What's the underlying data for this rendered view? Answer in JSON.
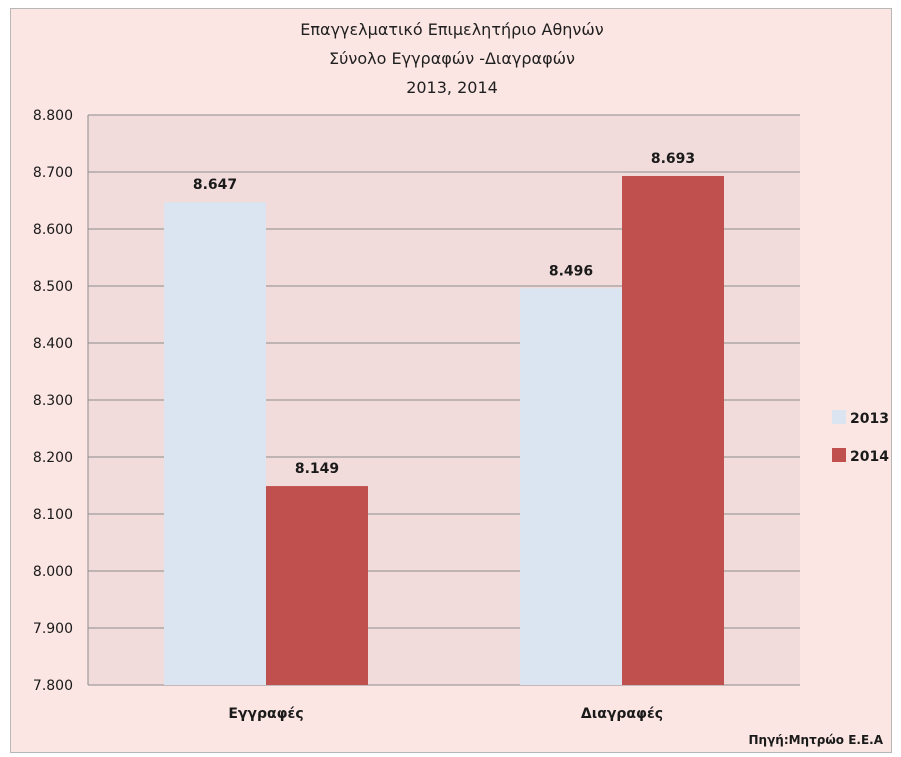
{
  "chart_data": {
    "type": "bar",
    "title_lines": [
      "Επαγγελματικό Επιμελητήριο Αθηνών",
      "Σύνολο Εγγραφών -Διαγραφών",
      "2013, 2014"
    ],
    "categories": [
      "Εγγραφές",
      "Διαγραφές"
    ],
    "series": [
      {
        "name": "2013",
        "values": [
          8647,
          8496
        ],
        "labels": [
          "8.647",
          "8.496"
        ],
        "color": "#dbe5f1"
      },
      {
        "name": "2014",
        "values": [
          8149,
          8693
        ],
        "labels": [
          "8.149",
          "8.693"
        ],
        "color": "#c0504d"
      }
    ],
    "ylim": [
      7800,
      8800
    ],
    "y_ticks": [
      {
        "value": 7800,
        "label": "7.800"
      },
      {
        "value": 7900,
        "label": "7.900"
      },
      {
        "value": 8000,
        "label": "8.000"
      },
      {
        "value": 8100,
        "label": "8.100"
      },
      {
        "value": 8200,
        "label": "8.200"
      },
      {
        "value": 8300,
        "label": "8.300"
      },
      {
        "value": 8400,
        "label": "8.400"
      },
      {
        "value": 8500,
        "label": "8.500"
      },
      {
        "value": 8600,
        "label": "8.600"
      },
      {
        "value": 8700,
        "label": "8.700"
      },
      {
        "value": 8800,
        "label": "8.800"
      }
    ],
    "grid": true,
    "legend_position": "right",
    "plot_background": "#f2dcdb",
    "source_note": "Πηγή:Μητρώο Ε.Ε.Α"
  }
}
